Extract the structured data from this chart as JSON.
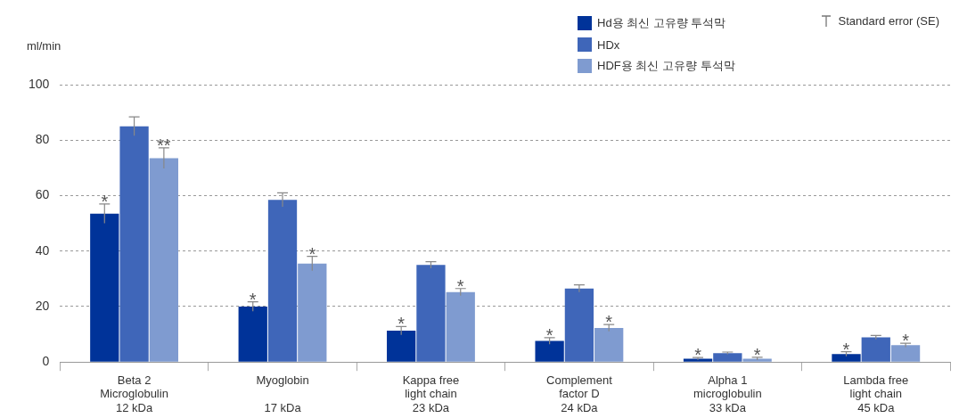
{
  "chart_data": {
    "type": "bar",
    "ylabel": "ml/min",
    "categories": [
      "Beta 2\nMicroglobulin\n12 kDa",
      "Myoglobin\n\n17 kDa",
      "Kappa free\nlight chain\n23 kDa",
      "Complement\nfactor D\n24 kDa",
      "Alpha 1\nmicroglobulin\n33 kDa",
      "Lambda free\nlight chain\n45 kDa"
    ],
    "series": [
      {
        "name": "Hd용 최신 고유량 투석막",
        "color": "#003399",
        "values": [
          53.5,
          20,
          11.3,
          7.6,
          1.2,
          2.9
        ],
        "errors": [
          3.5,
          1.7,
          1.5,
          1.2,
          0.4,
          0.8
        ],
        "value_labels": [
          "*",
          "*",
          "*",
          "*",
          "*",
          "*"
        ]
      },
      {
        "name": "HDx",
        "color": "#3f66b9",
        "values": [
          85,
          58.5,
          35,
          26.5,
          3.2,
          8.9
        ],
        "errors": [
          3.4,
          2.5,
          1.2,
          1.3,
          0.4,
          0.7
        ],
        "value_labels": [
          null,
          null,
          null,
          null,
          null,
          null
        ]
      },
      {
        "name": "HDF용 최신 고유량 투석막",
        "color": "#7f9bd0",
        "values": [
          73.5,
          35.5,
          25.2,
          12.3,
          1.2,
          6.1
        ],
        "errors": [
          3.7,
          2.6,
          1.3,
          1.2,
          0.5,
          0.7
        ],
        "value_labels": [
          "**",
          "*",
          "*",
          "*",
          "*",
          "*"
        ]
      }
    ],
    "annotations": [
      "Standard error (SE)"
    ],
    "ylim": [
      0,
      100
    ],
    "yticks": [
      0,
      20,
      40,
      60,
      80,
      100
    ],
    "grid": "y",
    "legend": "top right"
  }
}
